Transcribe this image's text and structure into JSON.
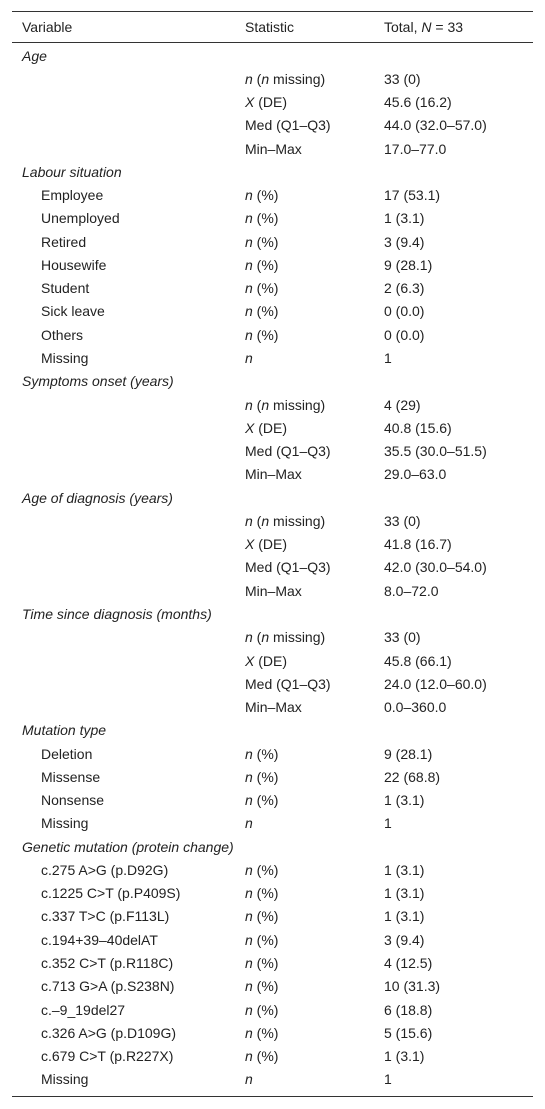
{
  "header": {
    "variable": "Variable",
    "statistic": "Statistic",
    "total": "Total, N = 33"
  },
  "table": {
    "rows": [
      {
        "section": "Age"
      },
      {
        "statistic": "n (n missing)",
        "total": "33 (0)"
      },
      {
        "statistic": "X (DE)",
        "total": "45.6 (16.2)"
      },
      {
        "statistic": "Med (Q1–Q3)",
        "total": "44.0 (32.0–57.0)"
      },
      {
        "statistic": "Min–Max",
        "total": "17.0–77.0"
      },
      {
        "section": "Labour situation"
      },
      {
        "label": "Employee",
        "statistic": "n (%)",
        "total": "17 (53.1)"
      },
      {
        "label": "Unemployed",
        "statistic": "n (%)",
        "total": "1 (3.1)"
      },
      {
        "label": "Retired",
        "statistic": "n (%)",
        "total": "3 (9.4)"
      },
      {
        "label": "Housewife",
        "statistic": "n (%)",
        "total": "9 (28.1)"
      },
      {
        "label": "Student",
        "statistic": "n (%)",
        "total": "2 (6.3)"
      },
      {
        "label": "Sick leave",
        "statistic": "n (%)",
        "total": "0 (0.0)"
      },
      {
        "label": "Others",
        "statistic": "n (%)",
        "total": "0 (0.0)"
      },
      {
        "label": "Missing",
        "statistic": "n",
        "total": "1"
      },
      {
        "section": "Symptoms onset (years)"
      },
      {
        "statistic": "n (n missing)",
        "total": "4 (29)"
      },
      {
        "statistic": "X (DE)",
        "total": "40.8 (15.6)"
      },
      {
        "statistic": "Med (Q1–Q3)",
        "total": "35.5 (30.0–51.5)"
      },
      {
        "statistic": "Min–Max",
        "total": "29.0–63.0"
      },
      {
        "section": "Age of diagnosis (years)"
      },
      {
        "statistic": "n (n missing)",
        "total": "33 (0)"
      },
      {
        "statistic": "X (DE)",
        "total": "41.8 (16.7)"
      },
      {
        "statistic": "Med (Q1–Q3)",
        "total": "42.0 (30.0–54.0)"
      },
      {
        "statistic": "Min–Max",
        "total": "8.0–72.0"
      },
      {
        "section": "Time since diagnosis (months)"
      },
      {
        "statistic": "n (n missing)",
        "total": "33 (0)"
      },
      {
        "statistic": "X (DE)",
        "total": "45.8 (66.1)"
      },
      {
        "statistic": "Med (Q1–Q3)",
        "total": "24.0 (12.0–60.0)"
      },
      {
        "statistic": "Min–Max",
        "total": "0.0–360.0"
      },
      {
        "section": "Mutation type"
      },
      {
        "label": "Deletion",
        "statistic": "n (%)",
        "total": "9 (28.1)"
      },
      {
        "label": "Missense",
        "statistic": "n (%)",
        "total": "22 (68.8)"
      },
      {
        "label": "Nonsense",
        "statistic": "n (%)",
        "total": "1 (3.1)"
      },
      {
        "label": "Missing",
        "statistic": "n",
        "total": "1"
      },
      {
        "section": "Genetic mutation (protein change)"
      },
      {
        "label": "c.275 A>G (p.D92G)",
        "statistic": "n (%)",
        "total": "1 (3.1)"
      },
      {
        "label": "c.1225 C>T (p.P409S)",
        "statistic": "n (%)",
        "total": "1 (3.1)"
      },
      {
        "label": "c.337 T>C (p.F113L)",
        "statistic": "n (%)",
        "total": "1 (3.1)"
      },
      {
        "label": "c.194+39–40delAT",
        "statistic": "n (%)",
        "total": "3 (9.4)"
      },
      {
        "label": "c.352 C>T (p.R118C)",
        "statistic": "n (%)",
        "total": "4 (12.5)"
      },
      {
        "label": "c.713 G>A (p.S238N)",
        "statistic": "n (%)",
        "total": "10 (31.3)"
      },
      {
        "label": "c.–9_19del27",
        "statistic": "n (%)",
        "total": "6 (18.8)"
      },
      {
        "label": "c.326 A>G (p.D109G)",
        "statistic": "n (%)",
        "total": "5 (15.6)"
      },
      {
        "label": "c.679 C>T (p.R227X)",
        "statistic": "n (%)",
        "total": "1 (3.1)"
      },
      {
        "label": "Missing",
        "statistic": "n",
        "total": "1"
      }
    ]
  }
}
